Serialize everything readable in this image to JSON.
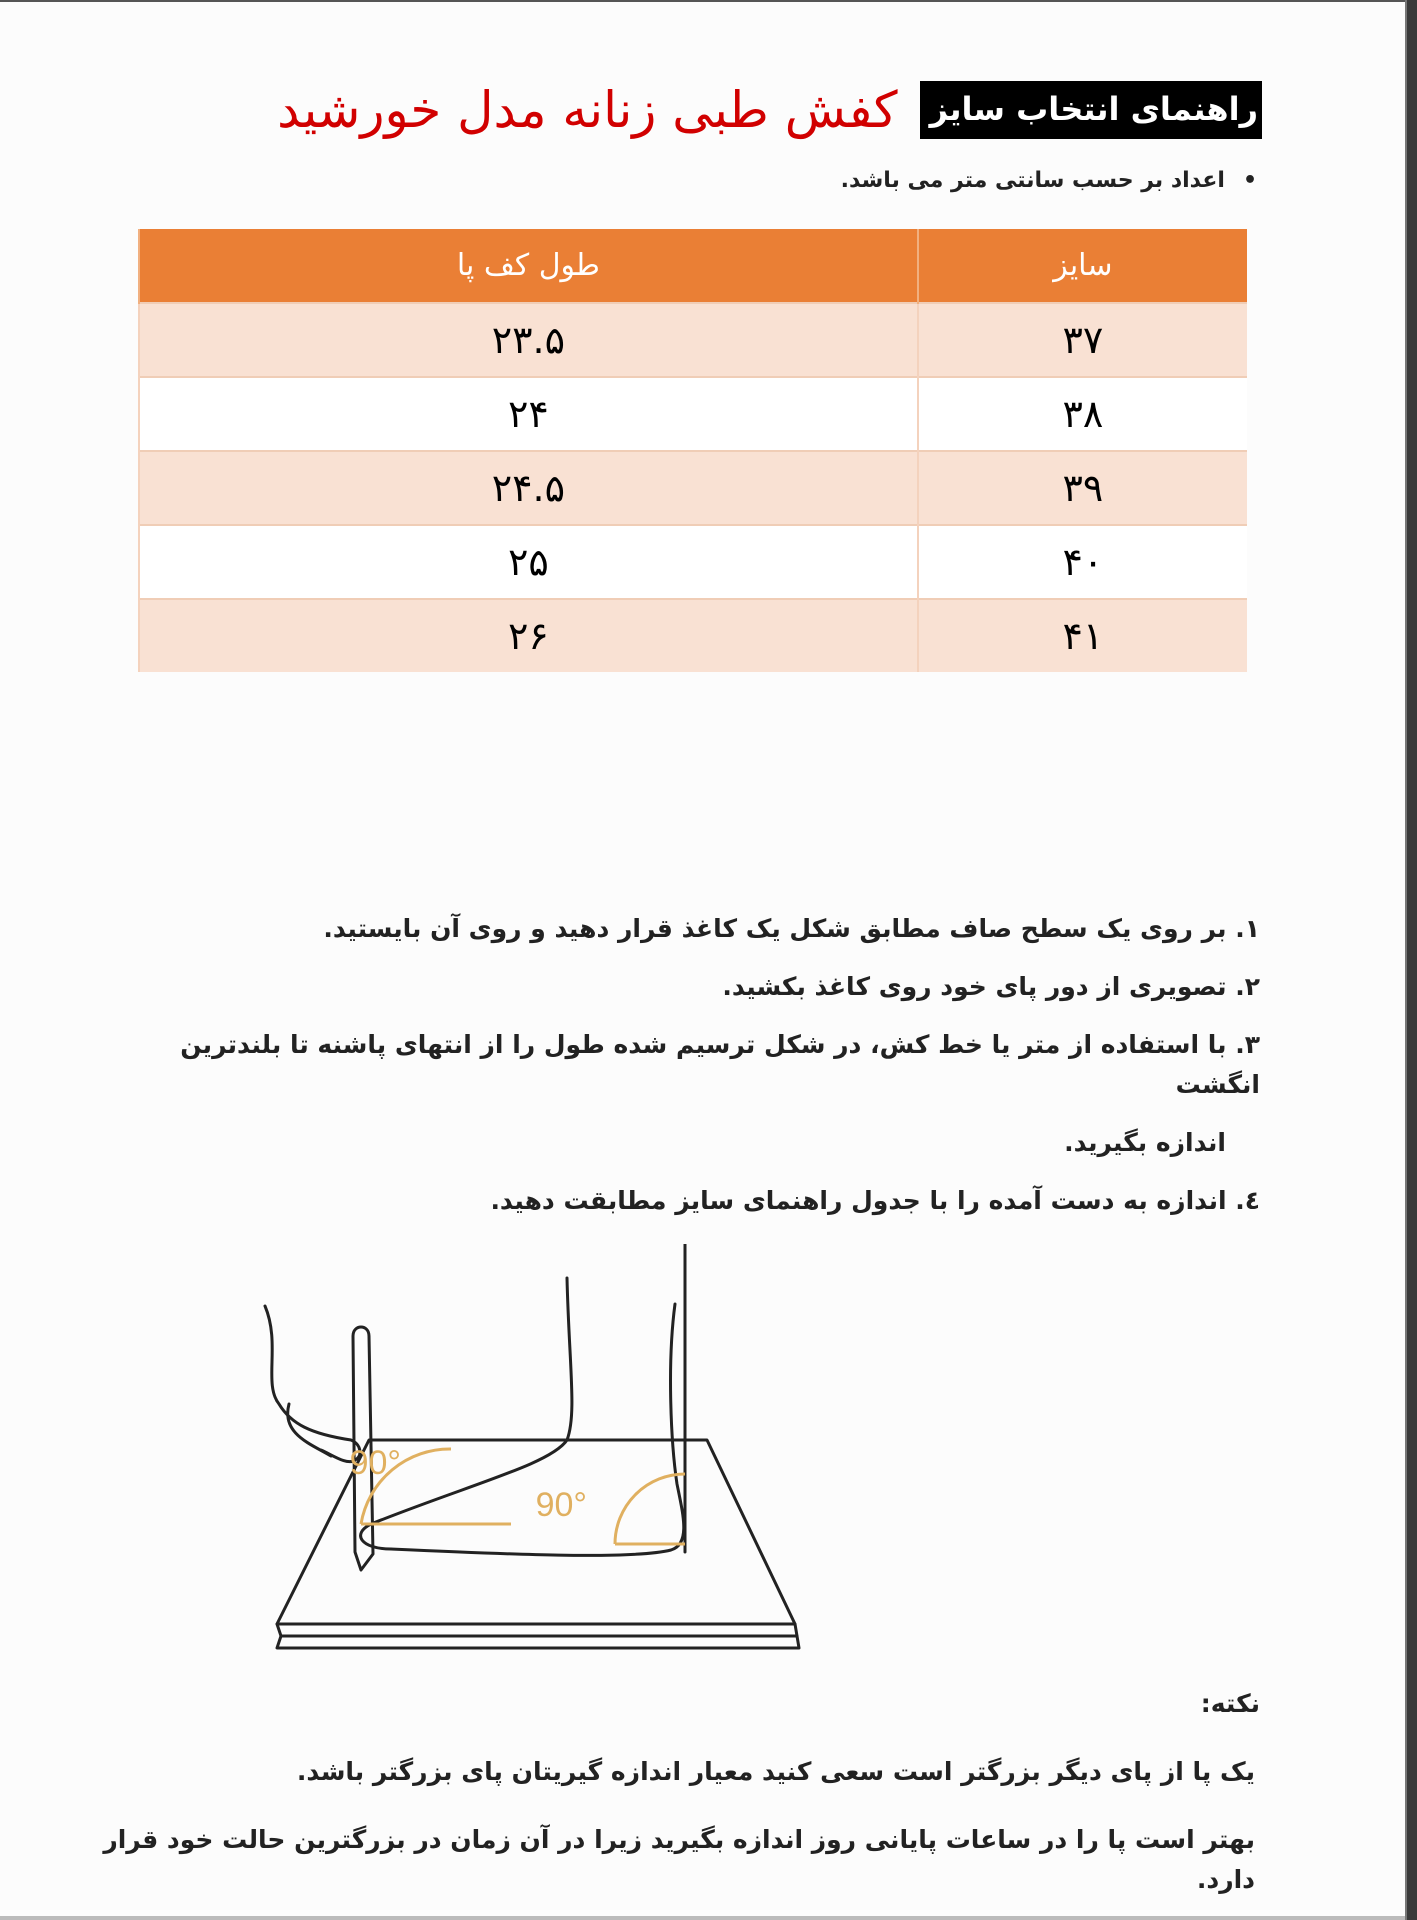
{
  "header": {
    "badge": "راهنمای انتخاب سایز",
    "title": "کفش طبی زنانه مدل خورشید"
  },
  "unit_note": "اعداد بر حسب سانتی متر می باشد.",
  "table": {
    "headers": [
      "سایز",
      "طول کف پا"
    ],
    "rows": [
      [
        "۳۷",
        "۲۳.۵"
      ],
      [
        "۳۸",
        "۲۴"
      ],
      [
        "۳۹",
        "۲۴.۵"
      ],
      [
        "۴۰",
        "۲۵"
      ],
      [
        "۴۱",
        "۲۶"
      ]
    ]
  },
  "colors": {
    "header_bg": "#ea7f35",
    "row_tint": "#f9e1d3",
    "title_red": "#d10000",
    "angle_marks": "#e0b060"
  },
  "steps": [
    "۱. بر روی یک سطح صاف مطابق شکل یک کاغذ قرار دهید و روی آن بایستید.",
    "۲. تصویری از دور پای خود روی کاغذ بکشید.",
    "۳. با استفاده از متر یا خط کش، در شکل ترسیم شده طول را از انتهای پاشنه تا بلندترین انگشت",
    "اندازه بگیرید.",
    "٤. اندازه به دست آمده را با جدول راهنمای سایز مطابقت دهید."
  ],
  "figure": {
    "angle_label_1": "90°",
    "angle_label_2": "90°"
  },
  "note": {
    "heading": "نکته:",
    "lines": [
      "یک پا از پای دیگر بزرگتر است سعی کنید معیار اندازه گیریتان پای بزرگتر باشد.",
      "بهتر است پا را در ساعات پایانی روز اندازه بگیرید زیرا در آن زمان در بزرگترین حالت خود قرار دارد."
    ]
  }
}
